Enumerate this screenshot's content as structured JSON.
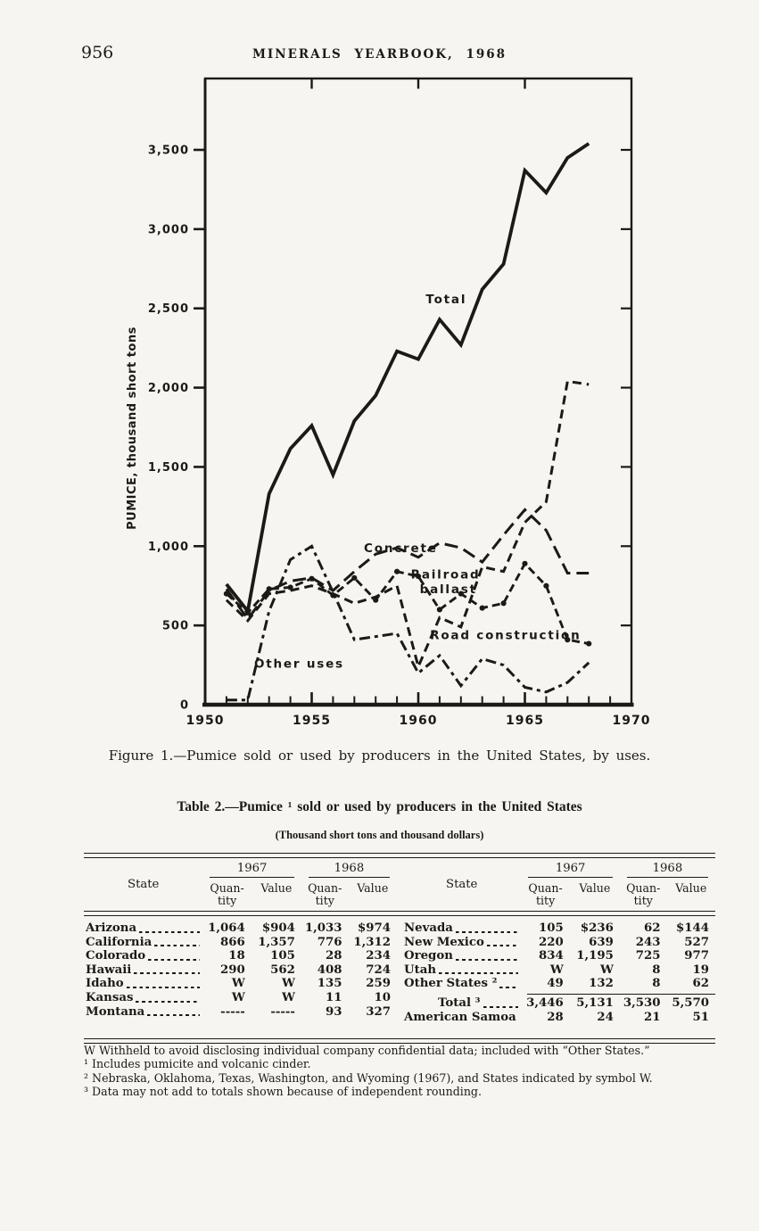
{
  "header": {
    "page_number": "956",
    "title": "MINERALS YEARBOOK, 1968"
  },
  "figure_caption": "Figure 1.—Pumice sold or used by producers in the United States, by uses.",
  "chart_data": {
    "type": "line",
    "title": "",
    "xlabel": "",
    "ylabel": "PUMICE, thousand short tons",
    "xlim": [
      1950,
      1970
    ],
    "ylim": [
      0,
      3950
    ],
    "grid": false,
    "legend_position": "inline-labels",
    "x": [
      1951,
      1952,
      1953,
      1954,
      1955,
      1956,
      1957,
      1958,
      1959,
      1960,
      1961,
      1962,
      1963,
      1964,
      1965,
      1966,
      1967,
      1968
    ],
    "x_ticks": {
      "values": [
        1950,
        1955,
        1960,
        1965,
        1970
      ],
      "labels": [
        "1950",
        "1955",
        "1960",
        "1965",
        "1970"
      ]
    },
    "y_ticks": {
      "values": [
        0,
        500,
        1000,
        1500,
        2000,
        2500,
        3000,
        3500
      ],
      "labels": [
        "0",
        "500",
        "1,000",
        "1,500",
        "2,000",
        "2,500",
        "3,000",
        "3,500"
      ]
    },
    "series": [
      {
        "name": "Total",
        "style": "solid-thick",
        "values": [
          760,
          590,
          1330,
          1615,
          1760,
          1450,
          1790,
          1950,
          2230,
          2180,
          2430,
          2270,
          2620,
          2780,
          3370,
          3230,
          3450,
          3540
        ]
      },
      {
        "name": "Concrete",
        "style": "long-dash",
        "values": [
          730,
          540,
          720,
          780,
          800,
          720,
          840,
          950,
          990,
          930,
          1020,
          990,
          900,
          1070,
          1230,
          1100,
          830,
          830
        ]
      },
      {
        "name": "Railroad ballast",
        "style": "dash-dot-markers",
        "values": [
          700,
          580,
          730,
          740,
          795,
          690,
          800,
          660,
          840,
          810,
          600,
          700,
          610,
          640,
          890,
          750,
          410,
          385
        ]
      },
      {
        "name": "Road construction",
        "style": "medium-dash",
        "values": [
          660,
          530,
          700,
          720,
          750,
          700,
          640,
          680,
          750,
          240,
          550,
          490,
          870,
          840,
          1150,
          1280,
          2040,
          2020
        ]
      },
      {
        "name": "Other uses",
        "style": "short-dash",
        "values": [
          30,
          30,
          590,
          915,
          1000,
          710,
          410,
          430,
          450,
          200,
          310,
          120,
          290,
          250,
          110,
          80,
          140,
          265
        ]
      }
    ],
    "annotations": [
      {
        "text": "Total",
        "year": 1960.35,
        "value": 2600
      },
      {
        "text": "Concrete",
        "year": 1957.45,
        "value": 1030
      },
      {
        "text": "Railroad\nballast",
        "year": 1959.65,
        "value": 865
      },
      {
        "text": "Road construction",
        "year": 1960.55,
        "value": 480
      },
      {
        "text": "Other uses",
        "year": 1952.3,
        "value": 300
      }
    ]
  },
  "table": {
    "title": "Table 2.—Pumice ¹ sold or used by producers in the United States",
    "subtitle": "(Thousand short tons and thousand dollars)",
    "col_state": "State",
    "year1": "1967",
    "year2": "1968",
    "sub_q": "Quan-\ntity",
    "sub_v": "Value",
    "left_rows": [
      {
        "state": "Arizona",
        "q67": "1,064",
        "v67": "$904",
        "q68": "1,033",
        "v68": "$974"
      },
      {
        "state": "California",
        "q67": "866",
        "v67": "1,357",
        "q68": "776",
        "v68": "1,312"
      },
      {
        "state": "Colorado",
        "q67": "18",
        "v67": "105",
        "q68": "28",
        "v68": "234"
      },
      {
        "state": "Hawaii",
        "q67": "290",
        "v67": "562",
        "q68": "408",
        "v68": "724"
      },
      {
        "state": "Idaho",
        "q67": "W",
        "v67": "W",
        "q68": "135",
        "v68": "259"
      },
      {
        "state": "Kansas",
        "q67": "W",
        "v67": "W",
        "q68": "11",
        "v68": "10"
      },
      {
        "state": "Montana",
        "q67": "-----",
        "v67": "-----",
        "q68": "93",
        "v68": "327"
      }
    ],
    "right_rows": [
      {
        "state": "Nevada",
        "q67": "105",
        "v67": "$236",
        "q68": "62",
        "v68": "$144"
      },
      {
        "state": "New Mexico",
        "q67": "220",
        "v67": "639",
        "q68": "243",
        "v68": "527"
      },
      {
        "state": "Oregon",
        "q67": "834",
        "v67": "1,195",
        "q68": "725",
        "v68": "977"
      },
      {
        "state": "Utah",
        "q67": "W",
        "v67": "W",
        "q68": "8",
        "v68": "19"
      },
      {
        "state": "Other States ²",
        "q67": "49",
        "v67": "132",
        "q68": "8",
        "v68": "62"
      }
    ],
    "total_row": {
      "state": "Total ³",
      "q67": "3,446",
      "v67": "5,131",
      "q68": "3,530",
      "v68": "5,570"
    },
    "samoa_row": {
      "state": "American Samoa",
      "q67": "28",
      "v67": "24",
      "q68": "21",
      "v68": "51"
    }
  },
  "footnotes": [
    "W Withheld to avoid disclosing individual company confidential data; included with “Other States.”",
    "¹ Includes pumicite and volcanic cinder.",
    "² Nebraska, Oklahoma, Texas, Washington, and Wyoming (1967), and States indicated by symbol W.",
    "³ Data may not add to totals shown because of independent rounding."
  ]
}
